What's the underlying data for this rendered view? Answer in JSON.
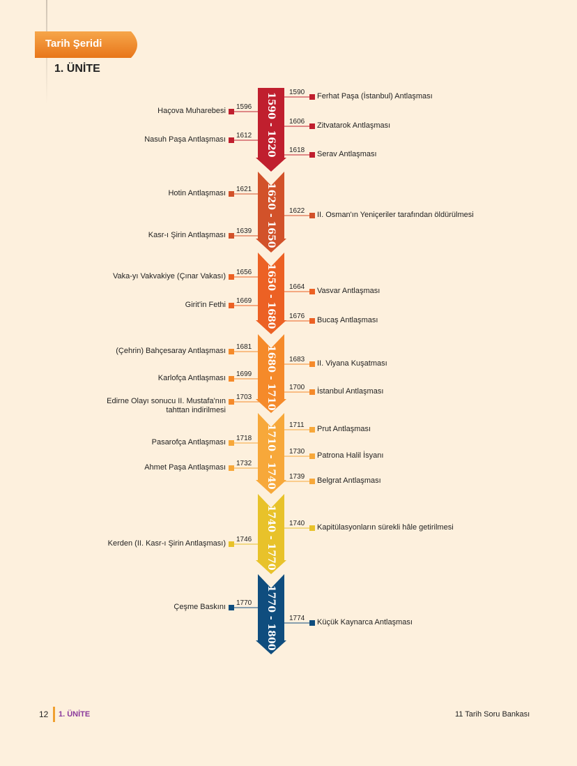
{
  "header": {
    "badge": "Tarih Şeridi",
    "unit": "1. ÜNİTE"
  },
  "footer": {
    "page_number": "12",
    "unit": "1. ÜNİTE",
    "book": "11 Tarih Soru Bankası"
  },
  "periods": [
    {
      "label": "1590 - 1620",
      "color": "#c01f2e",
      "events": [
        {
          "side": "right",
          "year": "1590",
          "text": "Ferhat  Paşa (İstanbul) Antlaşması"
        },
        {
          "side": "left",
          "year": "1596",
          "text": "Haçova Muharebesi"
        },
        {
          "side": "right",
          "year": "1606",
          "text": "Zitvatarok Antlaşması"
        },
        {
          "side": "left",
          "year": "1612",
          "text": "Nasuh Paşa Antlaşması"
        },
        {
          "side": "right",
          "year": "1618",
          "text": "Serav Antlaşması"
        }
      ]
    },
    {
      "label": "1620 - 1650",
      "color": "#d2522a",
      "events": [
        {
          "side": "left",
          "year": "1621",
          "text": "Hotin Antlaşması"
        },
        {
          "side": "right",
          "year": "1622",
          "text": "II. Osman'ın Yeniçeriler tarafından öldürülmesi"
        },
        {
          "side": "left",
          "year": "1639",
          "text": "Kasr-ı Şirin Antlaşması"
        }
      ]
    },
    {
      "label": "1650 - 1680",
      "color": "#ec6124",
      "events": [
        {
          "side": "left",
          "year": "1656",
          "text": "Vaka-yı Vakvakiye (Çınar Vakası)"
        },
        {
          "side": "right",
          "year": "1664",
          "text": "Vasvar Antlaşması"
        },
        {
          "side": "left",
          "year": "1669",
          "text": "Girit'in Fethi"
        },
        {
          "side": "right",
          "year": "1676",
          "text": "Bucaş Antlaşması"
        }
      ]
    },
    {
      "label": "1680 - 1710",
      "color": "#f58a2a",
      "events": [
        {
          "side": "left",
          "year": "1681",
          "text": "(Çehrin) Bahçesaray Antlaşması"
        },
        {
          "side": "right",
          "year": "1683",
          "text": "II. Viyana Kuşatması"
        },
        {
          "side": "left",
          "year": "1699",
          "text": "Karlofça Antlaşması"
        },
        {
          "side": "right",
          "year": "1700",
          "text": "İstanbul Antlaşması"
        },
        {
          "side": "left",
          "year": "1703",
          "text": "Edirne Olayı sonucu II. Mustafa'nın",
          "text2": "tahttan indirilmesi"
        }
      ]
    },
    {
      "label": "1710 - 1740",
      "color": "#f7a83a",
      "events": [
        {
          "side": "right",
          "year": "1711",
          "text": "Prut Antlaşması"
        },
        {
          "side": "left",
          "year": "1718",
          "text": "Pasarofça Antlaşması"
        },
        {
          "side": "right",
          "year": "1730",
          "text": "Patrona Halil İsyanı"
        },
        {
          "side": "left",
          "year": "1732",
          "text": "Ahmet Paşa Antlaşması"
        },
        {
          "side": "right",
          "year": "1739",
          "text": "Belgrat Antlaşması"
        }
      ]
    },
    {
      "label": "1740 - 1770",
      "color": "#e8c22a",
      "events": [
        {
          "side": "right",
          "year": "1740",
          "text": "Kapitülasyonların sürekli hâle getirilmesi"
        },
        {
          "side": "left",
          "year": "1746",
          "text": "Kerden (II. Kasr-ı Şirin Antlaşması)"
        }
      ]
    },
    {
      "label": "1770 - 1800",
      "color": "#0f4d7e",
      "events": [
        {
          "side": "left",
          "year": "1770",
          "text": "Çeşme Baskını"
        },
        {
          "side": "right",
          "year": "1774",
          "text": "Küçük Kaynarca Antlaşması"
        }
      ]
    }
  ]
}
